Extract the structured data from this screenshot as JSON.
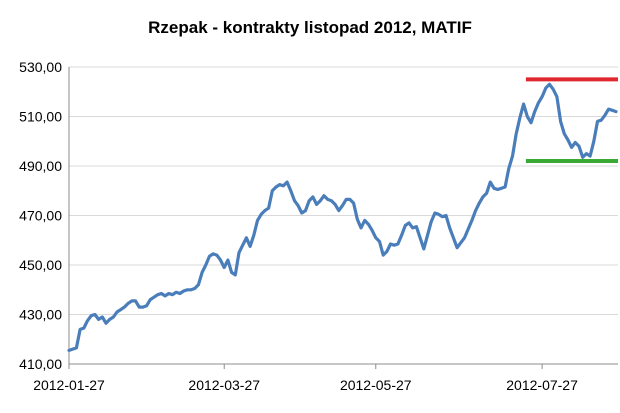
{
  "chart_data": {
    "type": "line",
    "title": "Rzepak - kontrakty listopad 2012, MATIF",
    "xlabel": "",
    "ylabel": "",
    "y_ticks": [
      "410,00",
      "430,00",
      "450,00",
      "470,00",
      "490,00",
      "510,00",
      "530,00"
    ],
    "ylim": [
      410,
      530
    ],
    "grid": true,
    "legend": "none",
    "x_ticks": [
      "2012-01-27",
      "2012-03-27",
      "2012-05-27",
      "2012-07-27"
    ],
    "xlim": [
      "2012-01-27",
      "2012-08-24"
    ],
    "series": [
      {
        "color": "#4a7ebb",
        "points": [
          [
            "2012-01-27",
            415.5
          ],
          [
            "2012-01-30",
            416.0
          ],
          [
            "2012-01-31",
            416.5
          ],
          [
            "2012-02-01",
            424.0
          ],
          [
            "2012-02-02",
            424.5
          ],
          [
            "2012-02-03",
            427.5
          ],
          [
            "2012-02-06",
            429.5
          ],
          [
            "2012-02-07",
            430.0
          ],
          [
            "2012-02-08",
            428.0
          ],
          [
            "2012-02-09",
            429.0
          ],
          [
            "2012-02-10",
            426.5
          ],
          [
            "2012-02-13",
            428.0
          ],
          [
            "2012-02-14",
            429.0
          ],
          [
            "2012-02-15",
            431.0
          ],
          [
            "2012-02-16",
            432.0
          ],
          [
            "2012-02-17",
            433.0
          ],
          [
            "2012-02-20",
            434.5
          ],
          [
            "2012-02-21",
            435.5
          ],
          [
            "2012-02-22",
            435.5
          ],
          [
            "2012-02-23",
            433.0
          ],
          [
            "2012-02-24",
            433.0
          ],
          [
            "2012-02-27",
            433.5
          ],
          [
            "2012-02-28",
            436.0
          ],
          [
            "2012-02-29",
            437.0
          ],
          [
            "2012-03-01",
            438.0
          ],
          [
            "2012-03-02",
            438.5
          ],
          [
            "2012-03-05",
            437.5
          ],
          [
            "2012-03-06",
            438.5
          ],
          [
            "2012-03-07",
            438.0
          ],
          [
            "2012-03-08",
            439.0
          ],
          [
            "2012-03-09",
            438.5
          ],
          [
            "2012-03-12",
            439.5
          ],
          [
            "2012-03-13",
            440.0
          ],
          [
            "2012-03-14",
            440.0
          ],
          [
            "2012-03-15",
            440.5
          ],
          [
            "2012-03-16",
            442.0
          ],
          [
            "2012-03-19",
            447.0
          ],
          [
            "2012-03-20",
            450.0
          ],
          [
            "2012-03-21",
            453.5
          ],
          [
            "2012-03-22",
            454.5
          ],
          [
            "2012-03-23",
            454.0
          ],
          [
            "2012-03-26",
            452.0
          ],
          [
            "2012-03-27",
            449.0
          ],
          [
            "2012-03-28",
            452.0
          ],
          [
            "2012-03-29",
            447.0
          ],
          [
            "2012-03-30",
            446.0
          ],
          [
            "2012-04-02",
            455.0
          ],
          [
            "2012-04-03",
            458.0
          ],
          [
            "2012-04-04",
            461.0
          ],
          [
            "2012-04-05",
            457.5
          ],
          [
            "2012-04-10",
            462.0
          ],
          [
            "2012-04-11",
            468.0
          ],
          [
            "2012-04-12",
            470.5
          ],
          [
            "2012-04-13",
            472.0
          ],
          [
            "2012-04-16",
            473.0
          ],
          [
            "2012-04-17",
            480.0
          ],
          [
            "2012-04-18",
            481.5
          ],
          [
            "2012-04-19",
            482.5
          ],
          [
            "2012-04-20",
            482.0
          ],
          [
            "2012-04-23",
            483.5
          ],
          [
            "2012-04-24",
            480.0
          ],
          [
            "2012-04-25",
            476.0
          ],
          [
            "2012-04-26",
            474.0
          ],
          [
            "2012-04-27",
            471.0
          ],
          [
            "2012-04-30",
            472.0
          ],
          [
            "2012-05-01",
            476.0
          ],
          [
            "2012-05-02",
            477.5
          ],
          [
            "2012-05-03",
            474.5
          ],
          [
            "2012-05-04",
            476.0
          ],
          [
            "2012-05-07",
            478.0
          ],
          [
            "2012-05-08",
            476.5
          ],
          [
            "2012-05-09",
            476.0
          ],
          [
            "2012-05-10",
            474.5
          ],
          [
            "2012-05-11",
            472.0
          ],
          [
            "2012-05-14",
            474.0
          ],
          [
            "2012-05-15",
            476.5
          ],
          [
            "2012-05-16",
            476.5
          ],
          [
            "2012-05-17",
            475.0
          ],
          [
            "2012-05-18",
            468.5
          ],
          [
            "2012-05-21",
            465.0
          ],
          [
            "2012-05-22",
            468.0
          ],
          [
            "2012-05-23",
            466.5
          ],
          [
            "2012-05-24",
            464.0
          ],
          [
            "2012-05-25",
            461.0
          ],
          [
            "2012-05-28",
            459.5
          ],
          [
            "2012-05-29",
            454.0
          ],
          [
            "2012-05-30",
            455.5
          ],
          [
            "2012-05-31",
            458.5
          ],
          [
            "2012-06-01",
            458.0
          ],
          [
            "2012-06-04",
            458.5
          ],
          [
            "2012-06-05",
            462.0
          ],
          [
            "2012-06-06",
            466.0
          ],
          [
            "2012-06-07",
            467.0
          ],
          [
            "2012-06-08",
            465.0
          ],
          [
            "2012-06-11",
            465.5
          ],
          [
            "2012-06-12",
            461.0
          ],
          [
            "2012-06-13",
            456.5
          ],
          [
            "2012-06-14",
            462.0
          ],
          [
            "2012-06-15",
            467.5
          ],
          [
            "2012-06-18",
            471.0
          ],
          [
            "2012-06-19",
            470.5
          ],
          [
            "2012-06-20",
            469.5
          ],
          [
            "2012-06-21",
            470.0
          ],
          [
            "2012-06-22",
            465.0
          ],
          [
            "2012-06-25",
            461.0
          ],
          [
            "2012-06-26",
            457.0
          ],
          [
            "2012-06-27",
            459.0
          ],
          [
            "2012-06-28",
            461.0
          ],
          [
            "2012-06-29",
            464.5
          ],
          [
            "2012-07-02",
            468.0
          ],
          [
            "2012-07-03",
            472.0
          ],
          [
            "2012-07-04",
            475.0
          ],
          [
            "2012-07-05",
            477.5
          ],
          [
            "2012-07-06",
            479.0
          ],
          [
            "2012-07-09",
            483.5
          ],
          [
            "2012-07-10",
            481.0
          ],
          [
            "2012-07-11",
            480.5
          ],
          [
            "2012-07-12",
            481.0
          ],
          [
            "2012-07-13",
            481.5
          ],
          [
            "2012-07-16",
            489.0
          ],
          [
            "2012-07-17",
            494.0
          ],
          [
            "2012-07-18",
            503.0
          ],
          [
            "2012-07-19",
            509.5
          ],
          [
            "2012-07-20",
            515.0
          ],
          [
            "2012-07-23",
            510.0
          ],
          [
            "2012-07-24",
            507.5
          ],
          [
            "2012-07-25",
            512.0
          ],
          [
            "2012-07-26",
            515.5
          ],
          [
            "2012-07-27",
            518.0
          ],
          [
            "2012-07-30",
            521.5
          ],
          [
            "2012-07-31",
            523.0
          ],
          [
            "2012-08-01",
            521.0
          ],
          [
            "2012-08-02",
            518.0
          ],
          [
            "2012-08-03",
            508.0
          ],
          [
            "2012-08-06",
            503.0
          ],
          [
            "2012-08-07",
            500.5
          ],
          [
            "2012-08-08",
            497.5
          ],
          [
            "2012-08-09",
            499.5
          ],
          [
            "2012-08-10",
            498.0
          ],
          [
            "2012-08-13",
            493.5
          ],
          [
            "2012-08-14",
            495.0
          ],
          [
            "2012-08-15",
            494.0
          ],
          [
            "2012-08-16",
            500.0
          ],
          [
            "2012-08-17",
            508.0
          ],
          [
            "2012-08-20",
            508.5
          ],
          [
            "2012-08-21",
            510.5
          ],
          [
            "2012-08-22",
            513.0
          ],
          [
            "2012-08-23",
            512.5
          ],
          [
            "2012-08-24",
            512.0
          ]
        ]
      }
    ],
    "reference_lines": [
      {
        "y": 525,
        "x_from": "2012-07-19",
        "x_to": "2012-08-24",
        "color": "#e0262e"
      },
      {
        "y": 492,
        "x_from": "2012-07-19",
        "x_to": "2012-08-24",
        "color": "#3aaa35"
      }
    ]
  }
}
